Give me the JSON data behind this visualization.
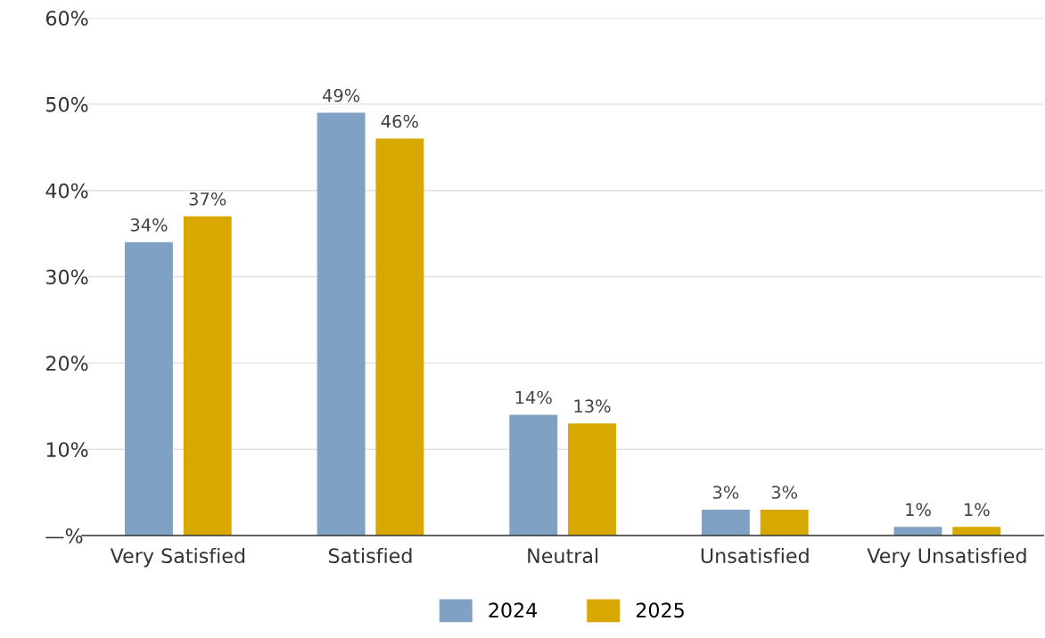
{
  "chart_data": {
    "type": "bar",
    "categories": [
      "Very Satisfied",
      "Satisfied",
      "Neutral",
      "Unsatisfied",
      "Very Unsatisfied"
    ],
    "series": [
      {
        "name": "2024",
        "color": "#7fa1c3",
        "values": [
          34,
          49,
          14,
          3,
          1
        ],
        "value_labels": [
          "34%",
          "49%",
          "14%",
          "3%",
          "1%"
        ]
      },
      {
        "name": "2025",
        "color": "#d9a800",
        "values": [
          37,
          46,
          13,
          3,
          1
        ],
        "value_labels": [
          "37%",
          "46%",
          "13%",
          "3%",
          "1%"
        ]
      }
    ],
    "ylim": [
      0,
      60
    ],
    "yticks": [
      {
        "value": 0,
        "label": "—%"
      },
      {
        "value": 10,
        "label": "10%"
      },
      {
        "value": 20,
        "label": "20%"
      },
      {
        "value": 30,
        "label": "30%"
      },
      {
        "value": 40,
        "label": "40%"
      },
      {
        "value": 50,
        "label": "50%"
      },
      {
        "value": 60,
        "label": "60%"
      }
    ],
    "grid": "y",
    "legend": "bottom"
  }
}
